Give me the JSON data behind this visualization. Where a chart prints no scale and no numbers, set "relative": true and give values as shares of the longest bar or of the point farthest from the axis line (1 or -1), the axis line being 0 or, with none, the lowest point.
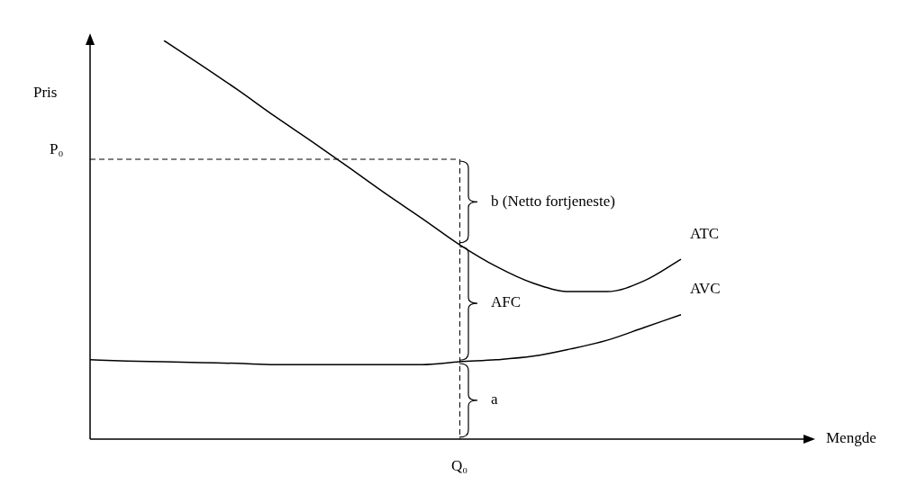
{
  "chart_data": {
    "type": "line",
    "relative": true,
    "ylabel": "Pris",
    "categories": [
      null,
      null,
      null,
      null,
      null,
      null,
      null,
      null,
      null,
      null,
      null,
      null,
      null,
      null,
      null,
      null,
      null
    ],
    "series": [
      {
        "name": "ATC",
        "color": "#000000",
        "values": [
          null,
          null,
          1,
          0.939,
          0.876,
          0.81,
          0.747,
          0.682,
          0.616,
          0.553,
          0.488,
          0.433,
          0.391,
          0.37,
          0.37,
          0.397,
          0.451
        ]
      },
      {
        "name": "AVC",
        "color": "#000000",
        "values": [
          0.199,
          0.196,
          0.194,
          0.192,
          0.19,
          0.187,
          0.187,
          0.187,
          0.187,
          0.187,
          0.194,
          0.199,
          0.208,
          0.226,
          0.248,
          0.28,
          0.312
        ]
      }
    ],
    "ref_lines": [
      {
        "axis": "y",
        "value": 0.702,
        "label": "P₀",
        "line_style": "dashed"
      }
    ],
    "annotations": [
      "b (Netto fortjeneste)",
      "AFC",
      "a",
      "Q₀",
      "Mengde"
    ],
    "legend": false,
    "grid": false,
    "marker": "none",
    "line_style": "solid"
  }
}
